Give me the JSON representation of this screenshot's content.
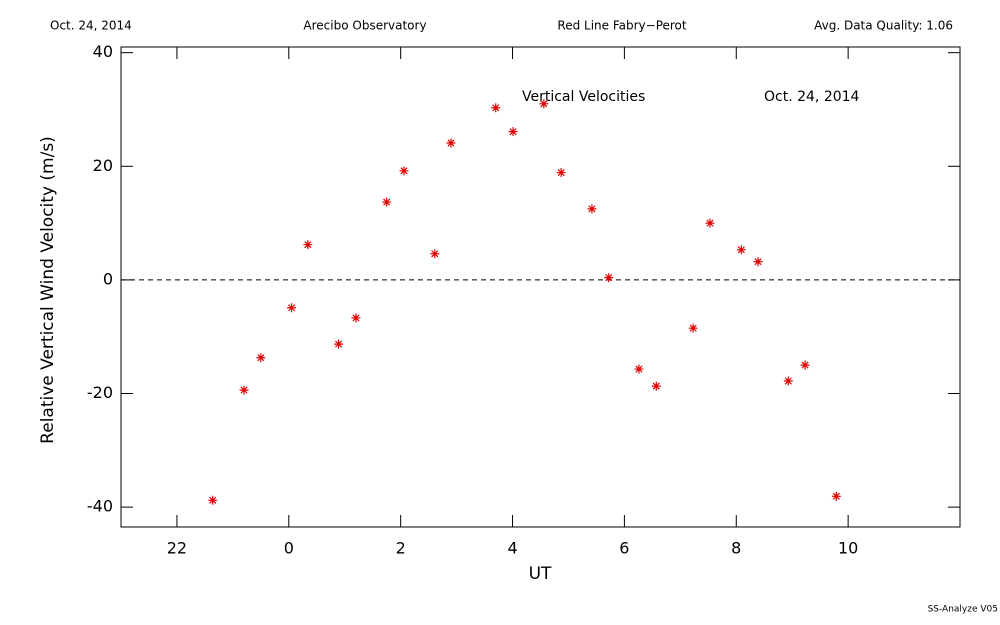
{
  "chart_data": {
    "type": "scatter",
    "header": [
      "Oct. 24, 2014",
      "Arecibo Observatory",
      "Red Line Fabry−Perot",
      "Avg. Data Quality: 1.06"
    ],
    "annotations": [
      "Vertical Velocities",
      "Oct. 24, 2014"
    ],
    "footer": "SS-Analyze V05",
    "x_label": "UT",
    "y_label": "Relative Vertical Wind Velocity (m/s)",
    "xlim": [
      -3,
      12
    ],
    "ylim": [
      -43.5,
      41
    ],
    "xticks": [
      {
        "value": -2,
        "label": "22"
      },
      0,
      2,
      4,
      6,
      8,
      10
    ],
    "yticks": [
      -40,
      -20,
      0,
      20,
      40
    ],
    "reference_line": 0,
    "color": "#e00000",
    "x": [
      -1.36,
      -0.8,
      -0.5,
      0.05,
      0.34,
      0.89,
      1.2,
      1.75,
      2.06,
      2.61,
      2.9,
      3.7,
      4.01,
      4.56,
      4.87,
      5.42,
      5.72,
      6.26,
      6.57,
      7.23,
      7.53,
      8.09,
      8.39,
      8.93,
      9.23,
      9.79
    ],
    "values": [
      -38.8,
      -19.4,
      -13.7,
      -4.9,
      6.2,
      -11.3,
      -6.7,
      13.7,
      19.2,
      4.6,
      24.1,
      30.3,
      26.1,
      31.0,
      18.9,
      12.5,
      0.4,
      -15.7,
      -18.7,
      -8.5,
      10.0,
      5.3,
      3.2,
      -17.8,
      -15.0,
      -38.1
    ]
  }
}
